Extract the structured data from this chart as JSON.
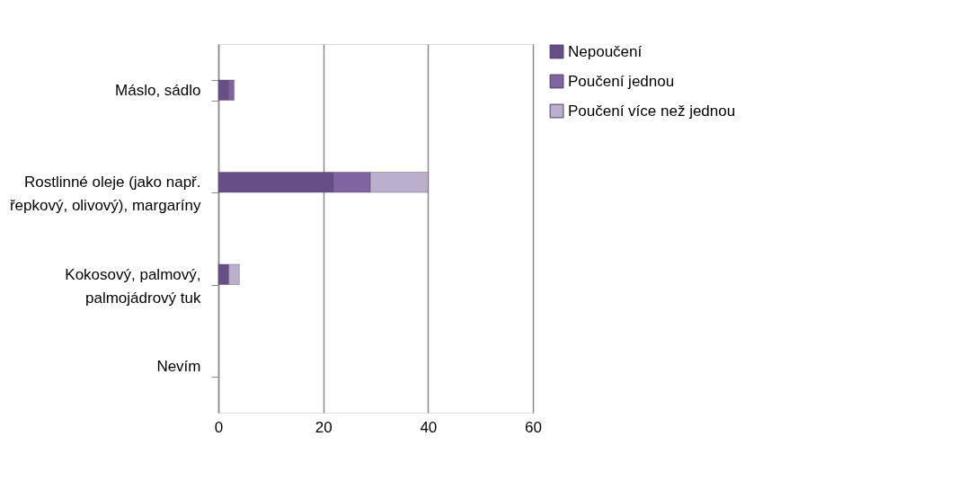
{
  "chart_data": {
    "type": "bar",
    "orientation": "horizontal",
    "stacked": true,
    "categories": [
      "Máslo, sádlo",
      "Rostlinné oleje (jako např.\nřepkový, olivový), margaríny",
      "Kokosový, palmový,\npalmojádrový tuk",
      "Nevím"
    ],
    "series": [
      {
        "name": "Nepoučení",
        "color": "#654f86",
        "values": [
          2,
          22,
          2,
          0
        ]
      },
      {
        "name": "Poučení jednou",
        "color": "#8064a2",
        "values": [
          1,
          7,
          0,
          0
        ]
      },
      {
        "name": "Poučení více než jednou",
        "color": "#bab0cb",
        "values": [
          0,
          11,
          2,
          0
        ]
      }
    ],
    "xlim": [
      0,
      60
    ],
    "xticks": [
      0,
      20,
      40,
      60
    ],
    "grid": "x",
    "legend": "right"
  }
}
